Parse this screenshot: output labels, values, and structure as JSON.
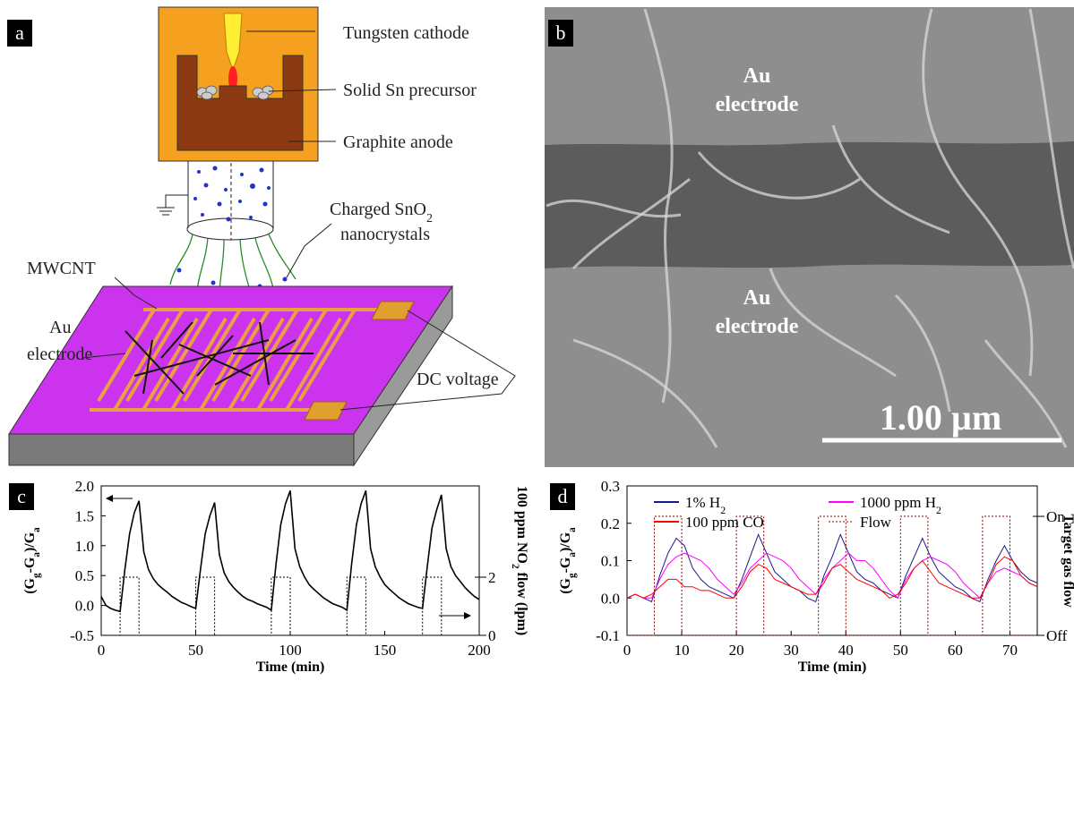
{
  "panel_labels": [
    "a",
    "b",
    "c",
    "d"
  ],
  "schematic": {
    "tungsten_cathode": "Tungsten cathode",
    "solid_precursor": "Solid Sn precursor",
    "graphite_anode": "Graphite anode",
    "charged": [
      "Charged SnO",
      "2"
    ],
    "nanocrystals": "nanocrystals",
    "mwcnt": "MWCNT",
    "au": "Au",
    "electrode": "electrode",
    "dc_voltage": "DC voltage"
  },
  "micrograph": {
    "top_label": [
      "Au",
      "electrode"
    ],
    "bottom_label": [
      "Au",
      "electrode"
    ],
    "scale_bar": "1.00 µm"
  },
  "chart_data": [
    {
      "type": "line",
      "xlabel": "Time (min)",
      "ylabel": [
        "(G",
        "g",
        "-G",
        "a",
        ")/G",
        "a"
      ],
      "y2label": [
        "100 ppm NO",
        "2",
        " flow (lpm)"
      ],
      "xlim": [
        0,
        200
      ],
      "xticks": [
        0,
        50,
        100,
        150,
        200
      ],
      "ylim": [
        -0.5,
        2.0
      ],
      "yticks": [
        -0.5,
        {
          "value": 0,
          "label": "0.0"
        },
        0.5,
        {
          "value": 1,
          "label": "1.0"
        },
        1.5,
        {
          "value": 2,
          "label": "2.0"
        }
      ],
      "y2lim": [
        0,
        5.14
      ],
      "y2ticks": [
        0,
        2
      ],
      "x": [
        0,
        2.5,
        5,
        7.5,
        10,
        12.5,
        15,
        17.5,
        20,
        22.5,
        25,
        27.5,
        30,
        32.5,
        35,
        37.5,
        40,
        42.5,
        45,
        47.5,
        50,
        52.5,
        55,
        57.5,
        60,
        62.5,
        65,
        67.5,
        70,
        72.5,
        75,
        77.5,
        80,
        82.5,
        85,
        87.5,
        90,
        92.5,
        95,
        97.5,
        100,
        102.5,
        105,
        107.5,
        110,
        112.5,
        115,
        117.5,
        120,
        122.5,
        125,
        127.5,
        130,
        132.5,
        135,
        137.5,
        140,
        142.5,
        145,
        147.5,
        150,
        152.5,
        155,
        157.5,
        160,
        162.5,
        165,
        167.5,
        170,
        172.5,
        175,
        177.5,
        180,
        182.5,
        185,
        187.5,
        190,
        192.5,
        195,
        197.5,
        200
      ],
      "series": [
        {
          "color": "#000000",
          "values": [
            0.15,
            0.0,
            -0.05,
            -0.08,
            -0.1,
            0.6,
            1.2,
            1.55,
            1.75,
            0.9,
            0.6,
            0.45,
            0.35,
            0.28,
            0.22,
            0.15,
            0.1,
            0.05,
            0.02,
            -0.02,
            -0.05,
            0.6,
            1.2,
            1.5,
            1.72,
            0.85,
            0.55,
            0.4,
            0.3,
            0.22,
            0.15,
            0.1,
            0.07,
            0.03,
            0.0,
            -0.03,
            -0.08,
            0.7,
            1.35,
            1.7,
            1.92,
            0.95,
            0.65,
            0.48,
            0.35,
            0.27,
            0.2,
            0.13,
            0.08,
            0.03,
            0.0,
            -0.03,
            -0.08,
            0.7,
            1.35,
            1.7,
            1.92,
            0.95,
            0.65,
            0.48,
            0.35,
            0.27,
            0.2,
            0.13,
            0.08,
            0.03,
            0.0,
            -0.03,
            -0.05,
            0.65,
            1.3,
            1.6,
            1.85,
            0.95,
            0.65,
            0.5,
            0.4,
            0.3,
            0.22,
            0.15,
            0.1
          ]
        },
        {
          "color": "#000000",
          "style": "dotted",
          "axis": "y2",
          "x": [
            0,
            10,
            10,
            20,
            20,
            50,
            50,
            60,
            60,
            90,
            90,
            100,
            100,
            130,
            130,
            140,
            140,
            170,
            170,
            180,
            180,
            200
          ],
          "values": [
            0,
            0,
            2,
            2,
            0,
            0,
            2,
            2,
            0,
            0,
            2,
            2,
            0,
            0,
            2,
            2,
            0,
            0,
            2,
            2,
            0,
            0
          ]
        }
      ]
    },
    {
      "type": "line",
      "xlabel": "Time (min)",
      "ylabel": [
        "(G",
        "g",
        "-G",
        "a",
        ")/G",
        "a"
      ],
      "y2label": "Target gas flow",
      "xlim": [
        0,
        75
      ],
      "xticks": [
        0,
        10,
        20,
        30,
        40,
        50,
        60,
        70
      ],
      "ylim": [
        -0.1,
        0.3
      ],
      "yticks": [
        -0.1,
        {
          "value": 0,
          "label": "0.0"
        },
        0.1,
        0.2,
        0.3
      ],
      "y2lim": [
        0,
        1.256
      ],
      "y2ticks": [
        {
          "value": 0,
          "label": "Off"
        },
        {
          "value": 1,
          "label": "On"
        }
      ],
      "legend": "upper",
      "x": [
        0,
        1.5,
        3,
        4.5,
        6,
        7.5,
        9,
        10.5,
        12,
        13.5,
        15,
        16.5,
        18,
        19.5,
        21,
        22.5,
        24,
        25.5,
        27,
        28.5,
        30,
        31.5,
        33,
        34.5,
        36,
        37.5,
        39,
        40.5,
        42,
        43.5,
        45,
        46.5,
        48,
        49.5,
        51,
        52.5,
        54,
        55.5,
        57,
        58.5,
        60,
        61.5,
        63,
        64.5,
        66,
        67.5,
        69,
        70.5,
        72,
        73.5,
        75
      ],
      "series": [
        {
          "name": [
            "1% H",
            "2"
          ],
          "color": "#1a1a8c",
          "values": [
            0.0,
            0.01,
            0.0,
            -0.01,
            0.06,
            0.12,
            0.16,
            0.14,
            0.08,
            0.05,
            0.03,
            0.02,
            0.01,
            0.0,
            0.05,
            0.11,
            0.17,
            0.12,
            0.07,
            0.05,
            0.03,
            0.02,
            0.0,
            -0.01,
            0.06,
            0.11,
            0.17,
            0.12,
            0.07,
            0.05,
            0.04,
            0.02,
            0.01,
            0.0,
            0.06,
            0.11,
            0.16,
            0.11,
            0.07,
            0.05,
            0.03,
            0.02,
            0.0,
            -0.01,
            0.05,
            0.1,
            0.14,
            0.1,
            0.07,
            0.05,
            0.04
          ]
        },
        {
          "name": [
            "1000 ppm  H",
            "2"
          ],
          "color": "#ff00ff",
          "values": [
            0.0,
            0.01,
            0.0,
            0.0,
            0.05,
            0.09,
            0.11,
            0.12,
            0.11,
            0.1,
            0.08,
            0.05,
            0.03,
            0.01,
            0.04,
            0.08,
            0.1,
            0.12,
            0.11,
            0.1,
            0.08,
            0.05,
            0.03,
            0.01,
            0.05,
            0.08,
            0.1,
            0.12,
            0.1,
            0.1,
            0.08,
            0.05,
            0.02,
            0.0,
            0.05,
            0.08,
            0.1,
            0.11,
            0.1,
            0.09,
            0.07,
            0.04,
            0.02,
            0.0,
            0.04,
            0.07,
            0.08,
            0.07,
            0.06,
            0.04,
            0.03
          ]
        },
        {
          "name": "100 ppm CO",
          "color": "#ff0000",
          "values": [
            0.0,
            0.01,
            0.0,
            0.01,
            0.03,
            0.05,
            0.05,
            0.03,
            0.03,
            0.02,
            0.02,
            0.01,
            0.0,
            0.0,
            0.03,
            0.07,
            0.09,
            0.08,
            0.05,
            0.04,
            0.03,
            0.02,
            0.01,
            0.01,
            0.04,
            0.08,
            0.09,
            0.07,
            0.05,
            0.04,
            0.03,
            0.02,
            0.0,
            0.01,
            0.04,
            0.08,
            0.1,
            0.07,
            0.04,
            0.03,
            0.02,
            0.01,
            0.0,
            0.0,
            0.04,
            0.09,
            0.11,
            0.1,
            0.06,
            0.04,
            0.03
          ]
        },
        {
          "name": "Flow",
          "color": "#8b0000",
          "style": "dotted",
          "axis": "y2",
          "x": [
            0,
            5,
            5,
            10,
            10,
            20,
            20,
            25,
            25,
            35,
            35,
            40,
            40,
            50,
            50,
            55,
            55,
            65,
            65,
            70,
            70,
            75
          ],
          "values": [
            0,
            0,
            1,
            1,
            0,
            0,
            1,
            1,
            0,
            0,
            1,
            1,
            0,
            0,
            1,
            1,
            0,
            0,
            1,
            1,
            0,
            0
          ]
        }
      ]
    }
  ]
}
